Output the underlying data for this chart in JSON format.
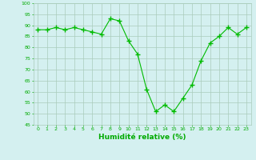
{
  "x": [
    0,
    1,
    2,
    3,
    4,
    5,
    6,
    7,
    8,
    9,
    10,
    11,
    12,
    13,
    14,
    15,
    16,
    17,
    18,
    19,
    20,
    21,
    22,
    23
  ],
  "y": [
    88,
    88,
    89,
    88,
    89,
    88,
    87,
    86,
    93,
    92,
    83,
    77,
    61,
    51,
    54,
    51,
    57,
    63,
    74,
    82,
    85,
    89,
    86,
    89
  ],
  "line_color": "#00bb00",
  "marker_color": "#00bb00",
  "bg_color": "#d4f0f0",
  "grid_color": "#aaccbb",
  "xlabel": "Humidité relative (%)",
  "ylim": [
    45,
    100
  ],
  "yticks": [
    45,
    50,
    55,
    60,
    65,
    70,
    75,
    80,
    85,
    90,
    95,
    100
  ],
  "ytick_labels": [
    "45",
    "50",
    "55",
    "60",
    "65",
    "70",
    "75",
    "80",
    "85",
    "90",
    "95",
    "100"
  ],
  "xlabel_color": "#00aa00",
  "tick_color": "#00aa00"
}
